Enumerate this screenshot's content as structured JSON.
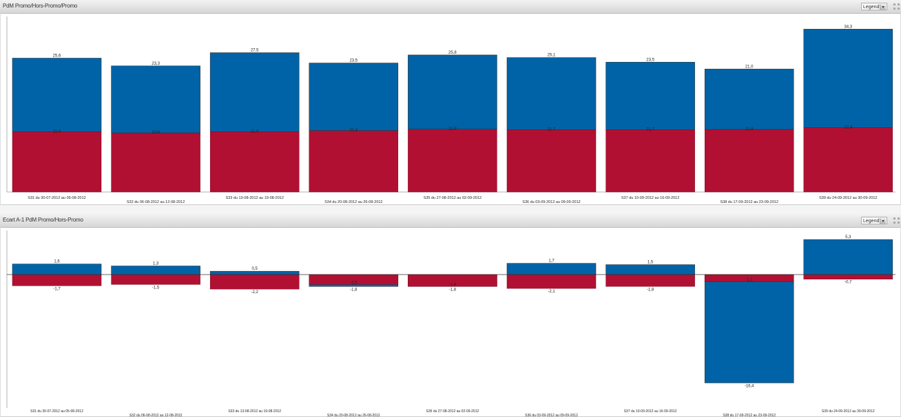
{
  "colors": {
    "series_promo": "#0063a7",
    "series_hors_promo": "#b11033",
    "axis": "#666666",
    "label": "#222222"
  },
  "panel1": {
    "title": "PdM Promo/Hors-Promo/Promo",
    "legend_label": "Legend",
    "expand_icon": "expand-icon"
  },
  "panel2": {
    "title": "Ecart A-1 PdM Promo/Hors-Promo",
    "legend_label": "Legend",
    "expand_icon": "expand-icon"
  },
  "chart_data": [
    {
      "type": "bar",
      "stacked": true,
      "categories": [
        "S31 du 30-07-2012 au 05-08-2012",
        "S32 du 06-08-2012 au 12-08-2012",
        "S33 du 13-08-2012 au 19-08-2012",
        "S34 du 20-08-2012 au 26-08-2012",
        "S35 du 27-08-2012 au 02-09-2012",
        "S36 du 03-09-2012 au 09-09-2012",
        "S37 du 10-09-2012 au 16-09-2012",
        "S38 du 17-09-2012 au 23-09-2012",
        "S39 du 24-09-2012 au 30-09-2012"
      ],
      "series": [
        {
          "values": [
            21.0,
            20.6,
            21.0,
            21.4,
            21.9,
            21.7,
            21.7,
            21.8,
            22.4
          ]
        },
        {
          "values": [
            25.6,
            23.3,
            27.5,
            23.5,
            25.8,
            25.1,
            23.5,
            21.0,
            34.3
          ]
        }
      ],
      "totals": [
        46.6,
        43.9,
        48.5,
        44.9,
        47.7,
        46.8,
        45.2,
        42.8,
        56.7
      ],
      "labels_low": [
        "21,0",
        "20,6",
        "21,0",
        "21,4",
        "21,9",
        "21,7",
        "21,7",
        "21,8",
        "22,4"
      ],
      "labels_top": [
        "25,6",
        "23,3",
        "27,5",
        "23,5",
        "25,8",
        "25,1",
        "23,5",
        "21,0",
        "34,3"
      ],
      "ylim": [
        0,
        57.5
      ],
      "grid": false,
      "legend": "collapsed"
    },
    {
      "type": "bar",
      "categories": [
        "S31 du 30-07-2012 au 05-08-2012",
        "S32 du 06-08-2012 au 12-08-2012",
        "S33 du 13-08-2012 au 19-08-2012",
        "S34 du 20-08-2012 au 26-08-2012",
        "S35 du 27-08-2012 au 02-09-2012",
        "S36 du 03-09-2012 au 09-09-2012",
        "S37 du 10-09-2012 au 16-09-2012",
        "S38 du 17-09-2012 au 23-09-2012",
        "S39 du 24-09-2012 au 30-09-2012"
      ],
      "series": [
        {
          "values": [
            1.6,
            1.3,
            0.5,
            -1.8,
            -1.8,
            1.7,
            1.5,
            -16.4,
            5.3
          ]
        },
        {
          "values": [
            -1.7,
            -1.5,
            -2.2,
            -1.5,
            -1.8,
            -2.1,
            -1.8,
            -1.1,
            -0.7
          ]
        }
      ],
      "labels_promo": [
        "1,6",
        "1,3",
        "0,5",
        "-1,8",
        "-1,8",
        "1,7",
        "1,5",
        "-16,4",
        "5,3"
      ],
      "labels_hors": [
        "-1,7",
        "-1,5",
        "-2,2",
        "-1,5",
        "-1,8",
        "-2,1",
        "-1,8",
        "-1,1",
        "-0,7"
      ],
      "ylim": [
        -20,
        5.5
      ],
      "grid": false,
      "legend": "collapsed"
    }
  ]
}
